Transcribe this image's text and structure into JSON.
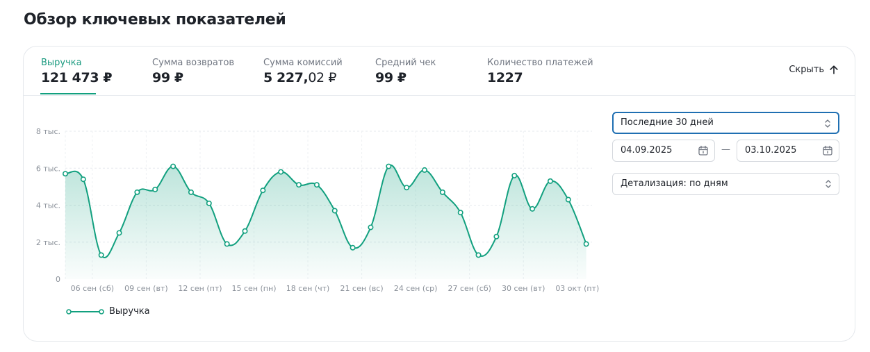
{
  "page_title": "Обзор ключевых показателей",
  "metrics": [
    {
      "label": "Выручка",
      "value": "121 473 ₽",
      "active": true
    },
    {
      "label": "Сумма возвратов",
      "value": "99 ₽",
      "active": false
    },
    {
      "label": "Сумма комиссий",
      "value_main": "5 227,",
      "value_frac": "02 ₽",
      "active": false
    },
    {
      "label": "Средний чек",
      "value": "99 ₽",
      "active": false
    },
    {
      "label": "Количество платежей",
      "value": "1227",
      "active": false
    }
  ],
  "hide_button": {
    "label": "Скрыть",
    "icon": "arrow-up-icon"
  },
  "controls": {
    "period": {
      "value": "Последние 30 дней",
      "icon": "chevron-updown-icon"
    },
    "date_from": {
      "value": "04.09.2025",
      "icon": "calendar-icon"
    },
    "date_separator": "—",
    "date_to": {
      "value": "03.10.2025",
      "icon": "calendar-icon"
    },
    "detail": {
      "value": "Детализация: по дням",
      "icon": "chevron-updown-icon"
    }
  },
  "colors": {
    "accent": "#12a07f",
    "focus": "#1f6fb2"
  },
  "chart_data": {
    "type": "line",
    "x": [
      "05 сен",
      "06 сен",
      "07 сен",
      "08 сен",
      "09 сен",
      "10 сен",
      "11 сен",
      "12 сен",
      "13 сен",
      "14 сен",
      "15 сен",
      "16 сен",
      "17 сен",
      "18 сен",
      "19 сен",
      "20 сен",
      "21 сен",
      "22 сен",
      "23 сен",
      "24 сен",
      "25 сен",
      "26 сен",
      "27 сен",
      "28 сен",
      "29 сен",
      "30 сен",
      "01 окт",
      "02 окт",
      "03 окт",
      "04 окт"
    ],
    "x_tick_labels": [
      "06 сен (сб)",
      "09 сен (вт)",
      "12 сен (пт)",
      "15 сен (пн)",
      "18 сен (чт)",
      "21 сен (вс)",
      "24 сен (ср)",
      "27 сен (сб)",
      "30 сен (вт)",
      "03 окт (пт)"
    ],
    "y_ticks": [
      "0",
      "2 тыс.",
      "4 тыс.",
      "6 тыс.",
      "8 тыс."
    ],
    "ylim": [
      0,
      8000
    ],
    "series": [
      {
        "name": "Выручка",
        "values": [
          5700,
          5400,
          1300,
          2500,
          4700,
          4850,
          6100,
          4700,
          4100,
          1900,
          2600,
          4800,
          5800,
          5100,
          5100,
          3700,
          1700,
          2800,
          6100,
          4950,
          5900,
          4700,
          3600,
          1300,
          2300,
          5600,
          3800,
          5300,
          4300,
          1900
        ]
      }
    ],
    "grid": true,
    "legend": "bottom-left"
  }
}
